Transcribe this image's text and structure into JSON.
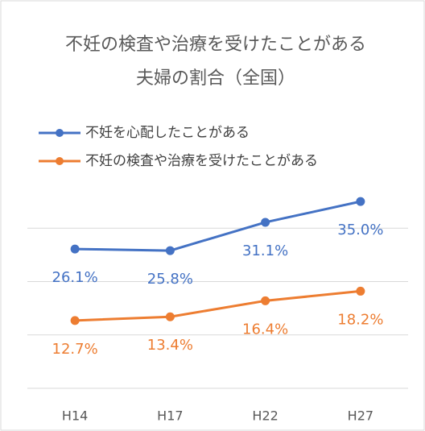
{
  "chart_data": {
    "type": "line",
    "title": [
      "不妊の検査や治療を受けたことがある",
      "夫婦の割合（全国）"
    ],
    "categories": [
      "H14",
      "H17",
      "H22",
      "H27"
    ],
    "series": [
      {
        "name": "不妊を心配したことがある",
        "color": "#4472c4",
        "values": [
          26.1,
          25.8,
          31.1,
          35.0
        ],
        "value_labels": [
          "26.1%",
          "25.8%",
          "31.1%",
          "35.0%"
        ]
      },
      {
        "name": "不妊の検査や治療を受けたことがある",
        "color": "#ed7d31",
        "values": [
          12.7,
          13.4,
          16.4,
          18.2
        ],
        "value_labels": [
          "12.7%",
          "13.4%",
          "16.4%",
          "18.2%"
        ]
      }
    ],
    "ylim": [
      0,
      40
    ],
    "yticks": [
      0,
      10,
      20,
      30
    ],
    "grid": true,
    "legend": "top-left"
  }
}
